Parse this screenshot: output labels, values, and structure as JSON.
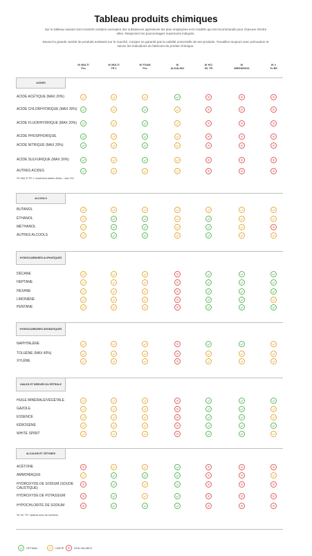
{
  "title": "Tableau produits chimiques",
  "intro_p1": "Sur le tableau suivant sont montrés certains exemples des substances agressives les plus employées et le modèle qui est recommandé pour chacune d'entre elles. Respectez les pourcentages maximums indiqués.",
  "intro_p2": "Devant la grande variété de produits existants sur le marché, Coizper ne garantit pas la validité universelle de ses produits. Travaillez toujours avec précaution et suivez les indications du fabricant du produit chimique.",
  "columns": [
    {
      "l1": "IK MULTI",
      "l2": "Pro"
    },
    {
      "l1": "IK MULTI",
      "l2": "TR 1"
    },
    {
      "l1": "IK FOAM",
      "l2": "Pro"
    },
    {
      "l1": "IK",
      "l2": "ALKALINO"
    },
    {
      "l1": "IK HC/",
      "l2": "HC TR"
    },
    {
      "l1": "IK",
      "l2": "MEISS/INOX"
    },
    {
      "l1": "IK e",
      "l2": "To BS"
    }
  ],
  "icon_colors": {
    "optimal": "#5cb85c",
    "limited": "#e8a93a",
    "not_suitable": "#e05a5a"
  },
  "sections": [
    {
      "name": "ACIDES",
      "rows": [
        {
          "label": "ACIDE ACÉTIQUE (MAX 20%)",
          "vals": [
            "lim",
            "lim",
            "lim",
            "ok",
            "no",
            "no",
            "no"
          ]
        },
        {
          "label": "ACIDE CHLORHYDRIQUE (MAX 30%)",
          "vals": [
            "ok",
            "lim",
            "ok",
            "lim",
            "no",
            "no",
            "no"
          ]
        },
        {
          "label": "ACIDE FLUORHYDRIQUE (MAX 20%)",
          "vals": [
            "ok",
            "lim",
            "ok",
            "lim",
            "no",
            "no",
            "no"
          ]
        },
        {
          "label": "ACIDE PHOSPHORIQUE",
          "vals": [
            "ok",
            "lim",
            "ok",
            "lim",
            "no",
            "no",
            "no"
          ]
        },
        {
          "label": "ACIDE NITRIQUE (MAX 20%)",
          "vals": [
            "ok",
            "lim",
            "ok",
            "lim",
            "no",
            "no",
            "no"
          ]
        },
        {
          "label": "ACIDE SULFURIQUE (MAX 30%)",
          "vals": [
            "ok",
            "lim",
            "ok",
            "lim",
            "no",
            "no",
            "no"
          ]
        },
        {
          "label": "AUTRES ACIDES",
          "vals": [
            "ok",
            "lim",
            "lim",
            "lim",
            "no",
            "no",
            "no"
          ]
        }
      ],
      "note": "*IK MULTI TR 1: seulement acides dilués - max. 6%"
    },
    {
      "name": "ALCOOLS",
      "rows": [
        {
          "label": "BUTANOL",
          "vals": [
            "lim",
            "lim",
            "lim",
            "lim",
            "lim",
            "lim",
            "lim"
          ]
        },
        {
          "label": "ÉTHANOL",
          "vals": [
            "lim",
            "ok",
            "ok",
            "lim",
            "ok",
            "lim",
            "lim"
          ]
        },
        {
          "label": "MÉTHANOL",
          "vals": [
            "lim",
            "ok",
            "ok",
            "lim",
            "ok",
            "lim",
            "no"
          ]
        },
        {
          "label": "AUTRES ALCOOLS",
          "vals": [
            "lim",
            "ok",
            "ok",
            "lim",
            "ok",
            "lim",
            "lim"
          ]
        }
      ]
    },
    {
      "name": "HYDROCARBURES ALIPHATIQUES",
      "rows": [
        {
          "label": "DÉCANE",
          "vals": [
            "lim",
            "lim",
            "lim",
            "no",
            "ok",
            "ok",
            "ok"
          ]
        },
        {
          "label": "HEPTANE",
          "vals": [
            "lim",
            "lim",
            "lim",
            "no",
            "ok",
            "ok",
            "ok"
          ]
        },
        {
          "label": "HEXANE",
          "vals": [
            "lim",
            "lim",
            "lim",
            "no",
            "ok",
            "ok",
            "ok"
          ]
        },
        {
          "label": "LIMONÈNE",
          "vals": [
            "lim",
            "lim",
            "lim",
            "no",
            "ok",
            "ok",
            "lim"
          ]
        },
        {
          "label": "PENTANE",
          "vals": [
            "lim",
            "lim",
            "lim",
            "no",
            "ok",
            "ok",
            "ok"
          ]
        }
      ]
    },
    {
      "name": "HYDROCARBURES AROMATIQUES",
      "rows": [
        {
          "label": "NAPHTALÈNE",
          "vals": [
            "lim",
            "lim",
            "lim",
            "no",
            "ok",
            "ok",
            "lim"
          ]
        },
        {
          "label": "TOLUÈNE (MAX 40%)",
          "vals": [
            "lim",
            "lim",
            "lim",
            "no",
            "lim",
            "lim",
            "lim"
          ]
        },
        {
          "label": "XYLÈNE",
          "vals": [
            "lim",
            "lim",
            "lim",
            "no",
            "lim",
            "lim",
            "lim"
          ]
        }
      ]
    },
    {
      "name": "HUILES ET DÉRIVÉS DU PÉTROLE",
      "rows": [
        {
          "label": "HUILE MINÉRALE/VÉGÉTALE",
          "vals": [
            "lim",
            "lim",
            "lim",
            "no",
            "ok",
            "ok",
            "ok"
          ]
        },
        {
          "label": "GAZOLE",
          "vals": [
            "lim",
            "lim",
            "lim",
            "no",
            "ok",
            "ok",
            "lim"
          ]
        },
        {
          "label": "ESSENCE",
          "vals": [
            "lim",
            "lim",
            "lim",
            "no",
            "ok",
            "ok",
            "lim"
          ]
        },
        {
          "label": "KÉROSÈNE",
          "vals": [
            "lim",
            "lim",
            "lim",
            "no",
            "ok",
            "ok",
            "ok"
          ]
        },
        {
          "label": "WHITE SPIRIT",
          "vals": [
            "lim",
            "lim",
            "lim",
            "no",
            "ok",
            "ok",
            "lim"
          ]
        }
      ]
    },
    {
      "name": "ALCALINS ET CÉTONES",
      "rows": [
        {
          "label": "ACÉTONE",
          "vals": [
            "no",
            "lim",
            "lim",
            "ok",
            "no",
            "no",
            "no"
          ]
        },
        {
          "label": "AMMONIAQUE",
          "vals": [
            "lim",
            "ok",
            "ok",
            "ok",
            "no",
            "no",
            "lim"
          ]
        },
        {
          "label": "HYDROXYDE DE SODIUM (SOUDE CAUSTIQUE)",
          "vals": [
            "no",
            "ok",
            "lim",
            "ok",
            "no",
            "no",
            "no"
          ]
        },
        {
          "label": "HYDROXYDE DE POTASSIUM",
          "vals": [
            "no",
            "ok",
            "lim",
            "ok",
            "no",
            "no",
            "no"
          ]
        },
        {
          "label": "HYPOCHLORITE DE SODIUM",
          "vals": [
            "no",
            "ok",
            "ok",
            "ok",
            "no",
            "no",
            "no"
          ]
        }
      ],
      "note": "*IK HC TR: Optimal avec de l'acétone"
    }
  ],
  "legend": {
    "optimal": "OPTIMAL",
    "limited": "LIMITÉ",
    "not_suitable": "NON VALABLE"
  }
}
